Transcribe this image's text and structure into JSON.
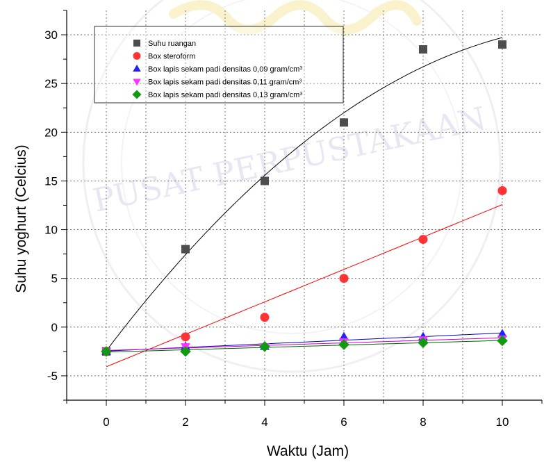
{
  "chart_data": {
    "type": "scatter",
    "xlabel": "Waktu (Jam)",
    "ylabel": "Suhu yoghurt (Celcius)",
    "xlim": [
      -1,
      11
    ],
    "ylim": [
      -7.5,
      32.5
    ],
    "x_ticks": [
      0,
      2,
      4,
      6,
      8,
      10
    ],
    "x_tick_labels": [
      "0",
      "2",
      "4",
      "6",
      "8",
      "10"
    ],
    "y_ticks": [
      -5,
      0,
      5,
      10,
      15,
      20,
      25,
      30
    ],
    "y_tick_labels": [
      "-5",
      "0",
      "5",
      "10",
      "15",
      "20",
      "25",
      "30"
    ],
    "grid": true,
    "legend_position": "top-left",
    "series": [
      {
        "name": "Suhu ruangan",
        "marker": "square",
        "color": "#4d4d4d",
        "fit_color": "#000000",
        "fit": "quadratic",
        "x": [
          0,
          2,
          4,
          6,
          8,
          10
        ],
        "y": [
          -2.5,
          8,
          15,
          21,
          28.5,
          29
        ]
      },
      {
        "name": "Box steroform",
        "marker": "circle",
        "color": "#ff3333",
        "fit_color": "#ff0000",
        "fit": "linear",
        "x": [
          0,
          2,
          4,
          6,
          8,
          10
        ],
        "y": [
          -2.5,
          -1,
          1,
          5,
          9,
          14
        ]
      },
      {
        "name": "Box lapis sekam padi densitas 0,09 gram/cm",
        "name_sup": "3",
        "marker": "triangle-up",
        "color": "#2222ff",
        "fit_color": "#0000cc",
        "fit": "linear",
        "x": [
          0,
          2,
          4,
          6,
          8,
          10
        ],
        "y": [
          -2.5,
          -2,
          -2,
          -1,
          -1,
          -0.7
        ]
      },
      {
        "name": "Box lapis sekam padi densitas 0,11 gram/cm",
        "name_sup": "3",
        "marker": "triangle-down",
        "color": "#ff33ff",
        "fit_color": "#cc00cc",
        "fit": "linear",
        "x": [
          0,
          2,
          4,
          6,
          8,
          10
        ],
        "y": [
          -2.5,
          -2,
          -2,
          -1.5,
          -1.3,
          -1.2
        ]
      },
      {
        "name": "Box lapis sekam padi densitas 0,13 gram/cm",
        "name_sup": "3",
        "marker": "diamond",
        "color": "#119911",
        "fit_color": "#006600",
        "fit": "linear",
        "x": [
          0,
          2,
          4,
          6,
          8,
          10
        ],
        "y": [
          -2.5,
          -2.5,
          -2,
          -1.8,
          -1.6,
          -1.4
        ]
      }
    ]
  }
}
